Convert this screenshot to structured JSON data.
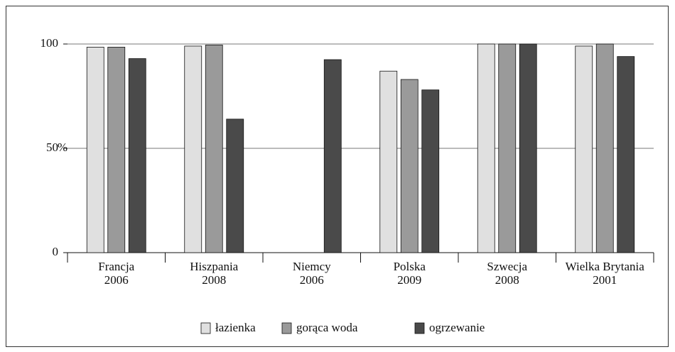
{
  "chart_data": {
    "type": "bar",
    "ylabel": "%",
    "categories": [
      [
        "Francja",
        "2006"
      ],
      [
        "Hiszpania",
        "2008"
      ],
      [
        "Niemcy",
        "2006"
      ],
      [
        "Polska",
        "2009"
      ],
      [
        "Szwecja",
        "2008"
      ],
      [
        "Wielka Brytania",
        "2001"
      ]
    ],
    "series": [
      {
        "name": "łazienka",
        "color": "#e0e0e0",
        "values": [
          98.5,
          99,
          null,
          87,
          100,
          99
        ]
      },
      {
        "name": "gorąca woda",
        "color": "#9a9a9a",
        "values": [
          98.5,
          99.5,
          null,
          83,
          100,
          100
        ]
      },
      {
        "name": "ogrzewanie",
        "color": "#4a4a4a",
        "values": [
          93,
          64,
          92.5,
          78,
          100,
          94
        ]
      }
    ],
    "ylim": [
      0,
      100
    ],
    "yticks": [
      0,
      50,
      100
    ],
    "grid": true,
    "legend": "bottom"
  }
}
